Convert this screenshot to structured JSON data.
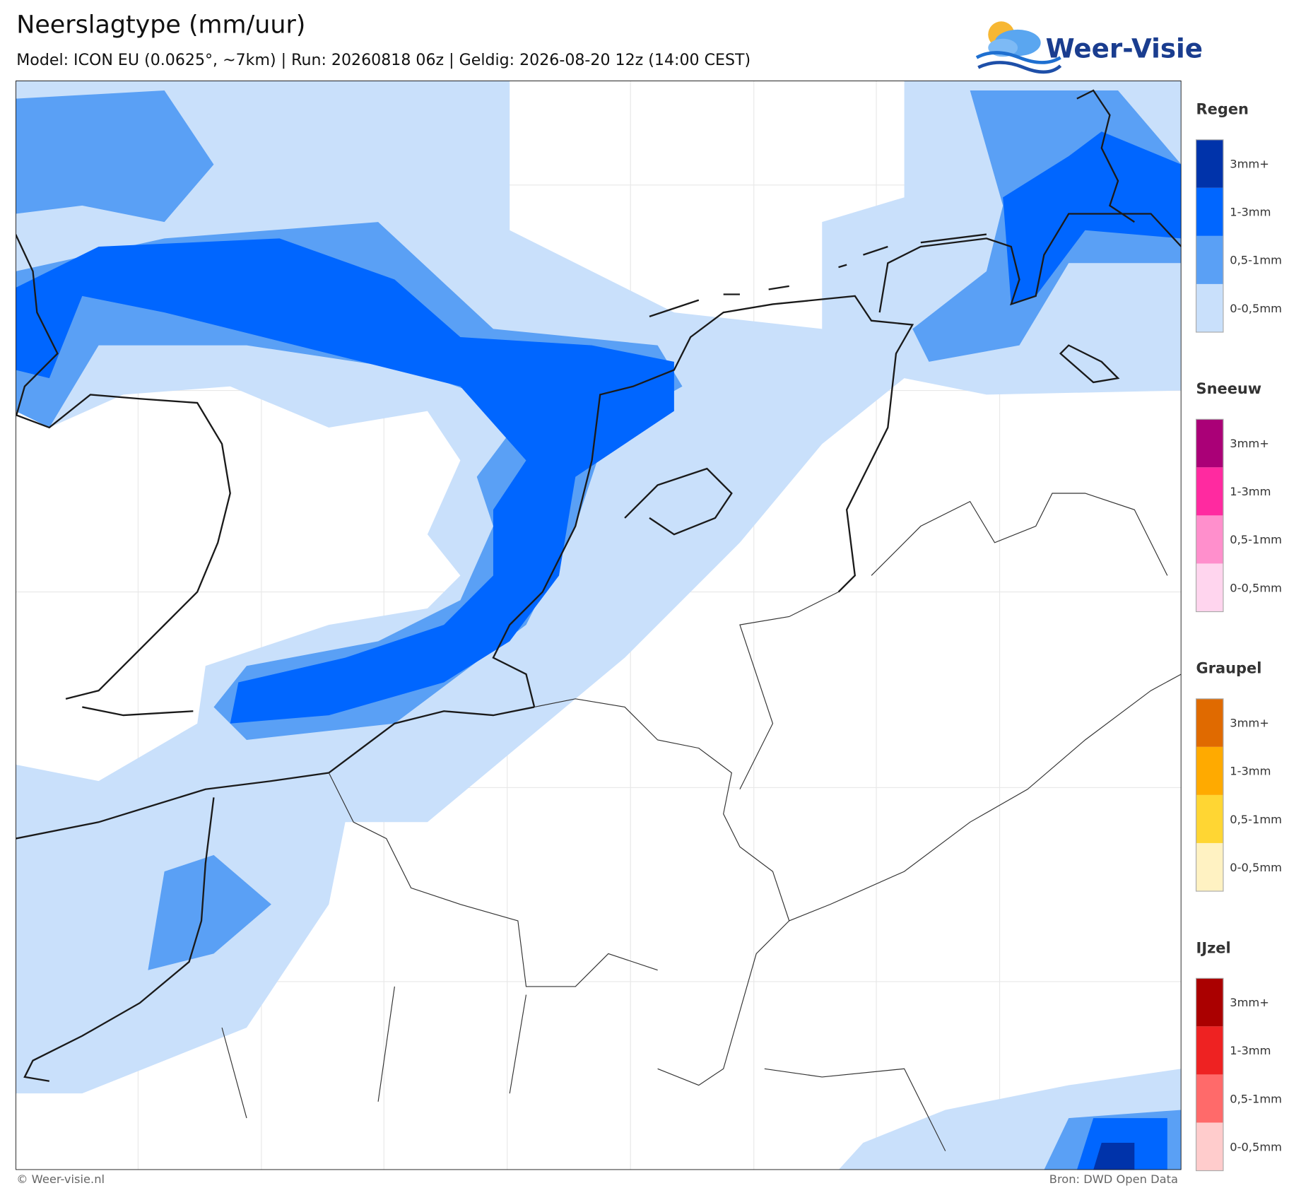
{
  "header": {
    "title": "Neerslagtype (mm/uur)",
    "subtitle": "Model: ICON EU (0.0625°, ~7km)  |  Run: 20260818 06z  |  Geldig: 2026-08-20 12z (14:00 CEST)"
  },
  "logo": {
    "text": "Weer-Visie"
  },
  "legend": {
    "groups": [
      {
        "title": "Regen",
        "items": [
          {
            "label": "3mm+",
            "color": "#0033aa"
          },
          {
            "label": "1-3mm",
            "color": "#0066ff"
          },
          {
            "label": "0,5-1mm",
            "color": "#5aa0f5"
          },
          {
            "label": "0-0,5mm",
            "color": "#c9e0fb"
          }
        ]
      },
      {
        "title": "Sneeuw",
        "items": [
          {
            "label": "3mm+",
            "color": "#aa0077"
          },
          {
            "label": "1-3mm",
            "color": "#ff2aa0"
          },
          {
            "label": "0,5-1mm",
            "color": "#ff8fcc"
          },
          {
            "label": "0-0,5mm",
            "color": "#ffd5ee"
          }
        ]
      },
      {
        "title": "Graupel",
        "items": [
          {
            "label": "3mm+",
            "color": "#e06a00"
          },
          {
            "label": "1-3mm",
            "color": "#ffaa00"
          },
          {
            "label": "0,5-1mm",
            "color": "#ffd633"
          },
          {
            "label": "0-0,5mm",
            "color": "#fff2c2"
          }
        ]
      },
      {
        "title": "IJzel",
        "items": [
          {
            "label": "3mm+",
            "color": "#aa0000"
          },
          {
            "label": "1-3mm",
            "color": "#ee2222"
          },
          {
            "label": "0,5-1mm",
            "color": "#ff6a6a"
          },
          {
            "label": "0-0,5mm",
            "color": "#ffcccc"
          }
        ]
      }
    ]
  },
  "footer": {
    "left": "© Weer-visie.nl",
    "right": "Bron: DWD Open Data"
  }
}
